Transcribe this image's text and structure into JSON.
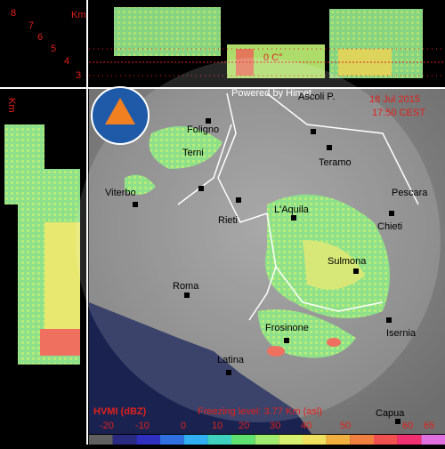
{
  "header": {
    "credit": "Powered by Himet",
    "date": "18 Jul 2015",
    "time": "17:50 CEST"
  },
  "profile": {
    "heights": [
      8,
      7,
      6,
      5,
      4,
      3
    ],
    "unit": "Km",
    "freezing_marker": "0 C°"
  },
  "cities": [
    {
      "label": "Ascoli P."
    },
    {
      "label": "Teramo"
    },
    {
      "label": "Foligno"
    },
    {
      "label": "Terni"
    },
    {
      "label": "Viterbo"
    },
    {
      "label": "Rieti"
    },
    {
      "label": "L'Aquila"
    },
    {
      "label": "Pescara"
    },
    {
      "label": "Chieti"
    },
    {
      "label": "Sulmona"
    },
    {
      "label": "Roma"
    },
    {
      "label": "Frosinone"
    },
    {
      "label": "Isernia"
    },
    {
      "label": "Latina"
    },
    {
      "label": "Capua"
    }
  ],
  "legend": {
    "title": "HVMI (dBZ)",
    "freezing_level": "Freezing level: 3.77 Km (asl)",
    "ticks": [
      -20,
      -10,
      0,
      10,
      20,
      30,
      40,
      50,
      60,
      65
    ]
  }
}
